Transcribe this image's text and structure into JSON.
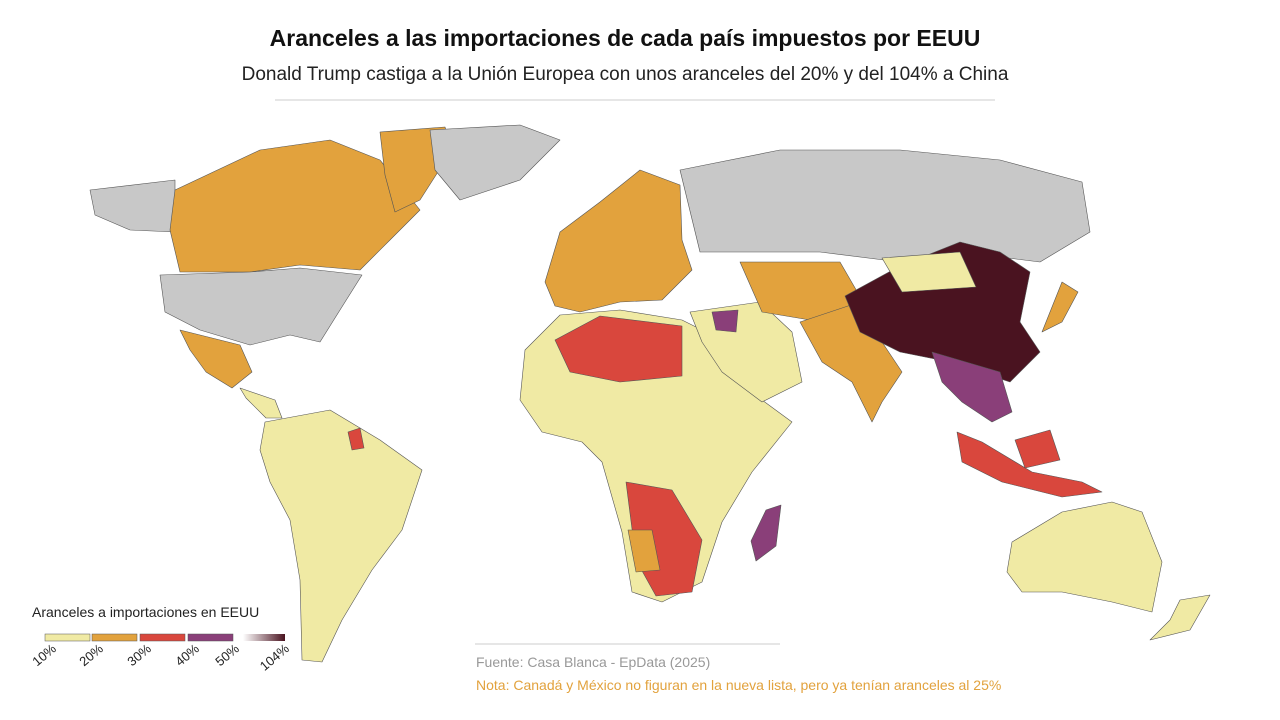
{
  "header": {
    "title": "Aranceles a las importaciones de cada país impuestos por EEUU",
    "subtitle": "Donald Trump castiga a la Unión Europea con unos aranceles del 20% y del 104% a China"
  },
  "legend": {
    "title": "Aranceles a importaciones en EEUU",
    "items": [
      {
        "label": "10%",
        "color": "#f0eaa4"
      },
      {
        "label": "20%",
        "color": "#e2a23d"
      },
      {
        "label": "30%",
        "color": "#d9473d"
      },
      {
        "label": "40%",
        "color": "#8a3f79"
      },
      {
        "label": "50%",
        "color": "#ffffff"
      },
      {
        "label": "104%",
        "color": "#4a1320"
      }
    ]
  },
  "footer": {
    "source": "Fuente: Casa Blanca - EpData (2025)",
    "note": "Nota: Canadá y México no figuran en la nueva lista, pero ya tenían aranceles al 25%"
  }
}
